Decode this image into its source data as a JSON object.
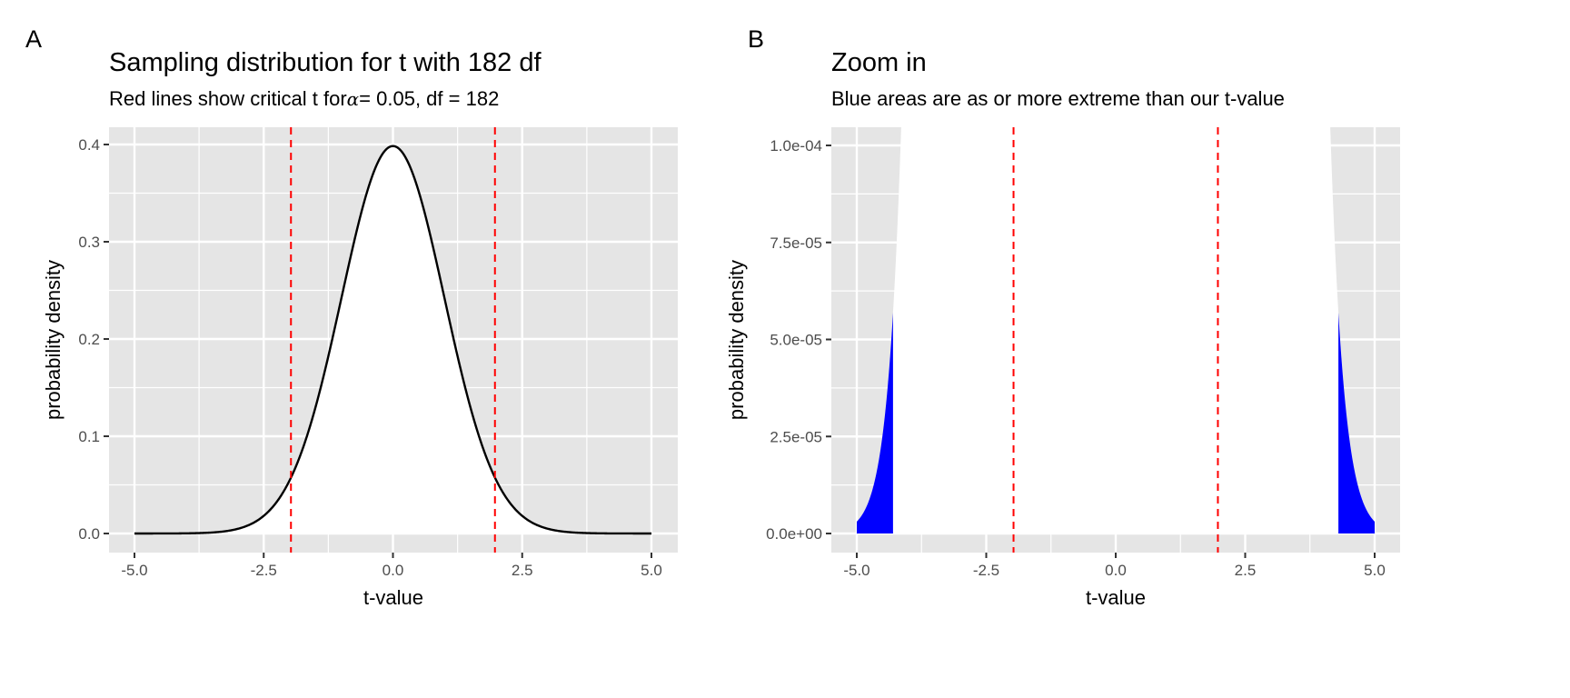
{
  "chart_data": [
    {
      "type": "area",
      "tag": "A",
      "title": "Sampling distribution for t with 182 df",
      "subtitle_prefix": "Red lines show critical t for ",
      "subtitle_symbol": "α",
      "subtitle_suffix": " = 0.05, df = 182",
      "xlabel": "t-value",
      "ylabel": "probability density",
      "xlim": [
        -5,
        5
      ],
      "ylim": [
        0,
        0.4
      ],
      "x_ticks": [
        "-5.0",
        "-2.5",
        "0.0",
        "2.5",
        "5.0"
      ],
      "x_tick_values": [
        -5,
        -2.5,
        0,
        2.5,
        5
      ],
      "y_ticks": [
        "0.0",
        "0.1",
        "0.2",
        "0.3",
        "0.4"
      ],
      "y_tick_values": [
        0,
        0.1,
        0.2,
        0.3,
        0.4
      ],
      "distribution": "t",
      "df": 182,
      "critical_t": [
        -1.973,
        1.973
      ],
      "curve_color": "#000000",
      "critical_line_color": "#ff0000",
      "grid": true
    },
    {
      "type": "area",
      "tag": "B",
      "title": "Zoom in",
      "subtitle": "Blue areas are as or more extreme than our t-value",
      "xlabel": "t-value",
      "ylabel": "probability density",
      "xlim": [
        -5,
        5
      ],
      "ylim": [
        0,
        0.0001
      ],
      "x_ticks": [
        "-5.0",
        "-2.5",
        "0.0",
        "2.5",
        "5.0"
      ],
      "x_tick_values": [
        -5,
        -2.5,
        0,
        2.5,
        5
      ],
      "y_ticks": [
        "0.0e+00",
        "2.5e-05",
        "5.0e-05",
        "7.5e-05",
        "1.0e-04"
      ],
      "y_tick_values": [
        0,
        2.5e-05,
        5e-05,
        7.5e-05,
        0.0001
      ],
      "distribution": "t",
      "df": 182,
      "critical_t": [
        -1.973,
        1.973
      ],
      "observed_t": 4.3,
      "extreme_fill_color": "#0000ff",
      "critical_line_color": "#ff0000",
      "grid": true
    }
  ]
}
